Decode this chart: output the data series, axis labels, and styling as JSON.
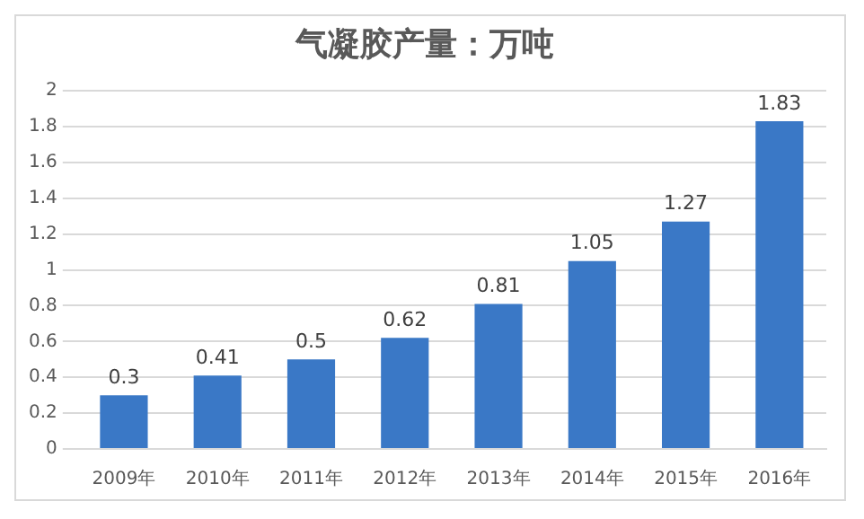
{
  "chart_data": {
    "type": "bar",
    "title": "气凝胶产量：万吨",
    "categories": [
      "2009年",
      "2010年",
      "2011年",
      "2012年",
      "2013年",
      "2014年",
      "2015年",
      "2016年"
    ],
    "values": [
      0.3,
      0.41,
      0.5,
      0.62,
      0.81,
      1.05,
      1.27,
      1.83
    ],
    "color": "#3a78c6",
    "ylim": [
      0,
      2
    ],
    "yticks": [
      0,
      0.2,
      0.4,
      0.6,
      0.8,
      1,
      1.2,
      1.4,
      1.6,
      1.8,
      2
    ],
    "grid": "y",
    "data_labels": true,
    "legend": false
  }
}
